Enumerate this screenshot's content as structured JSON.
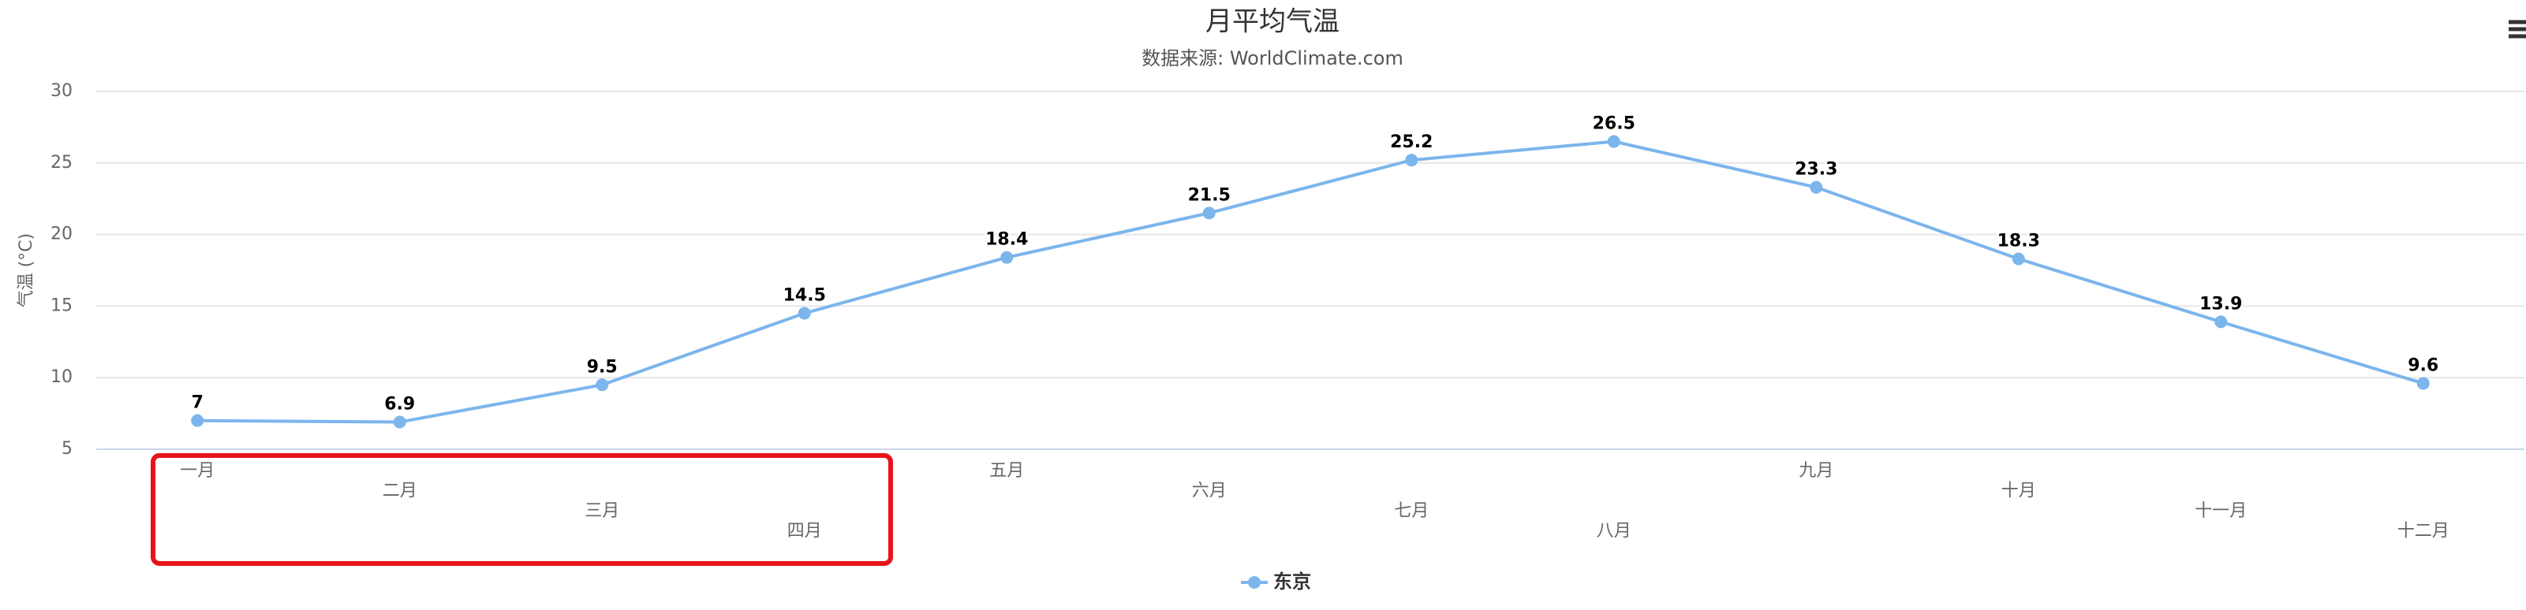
{
  "chart_data": {
    "type": "line",
    "title": "月平均气温",
    "subtitle": "数据来源: WorldClimate.com",
    "y_axis_title": "气温 (°C)",
    "categories": [
      "一月",
      "二月",
      "三月",
      "四月",
      "五月",
      "六月",
      "七月",
      "八月",
      "九月",
      "十月",
      "十一月",
      "十二月"
    ],
    "series": [
      {
        "name": "东京",
        "color": "#7cb5ec",
        "values": [
          7,
          6.9,
          9.5,
          14.5,
          18.4,
          21.5,
          25.2,
          26.5,
          23.3,
          18.3,
          13.9,
          9.6
        ]
      }
    ],
    "ylim": [
      5,
      30
    ],
    "yticks": [
      5,
      10,
      15,
      20,
      25,
      30
    ],
    "grid": true,
    "data_labels": true
  }
}
